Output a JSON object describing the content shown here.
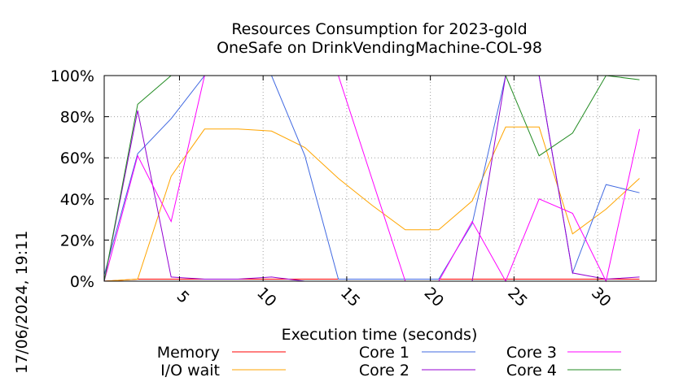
{
  "chart_data": {
    "type": "line",
    "title": [
      "Resources Consumption for 2023-gold",
      "OneSafe on DrinkVendingMachine-COL-98"
    ],
    "xlabel": "Execution time (seconds)",
    "ylabel": "",
    "xlim": [
      0.5,
      33.5
    ],
    "ylim": [
      0,
      100
    ],
    "x_ticks": [
      5,
      10,
      15,
      20,
      25,
      30
    ],
    "y_ticks": [
      {
        "value": 0,
        "label": "0%"
      },
      {
        "value": 20,
        "label": "20%"
      },
      {
        "value": 40,
        "label": "40%"
      },
      {
        "value": 60,
        "label": "60%"
      },
      {
        "value": 80,
        "label": "80%"
      },
      {
        "value": 100,
        "label": "100%"
      }
    ],
    "grid": true,
    "legend_position": "bottom",
    "timestamp": "17/06/2024, 19:11",
    "series": [
      {
        "name": "Memory",
        "color": "#ff0000",
        "points": [
          [
            0.5,
            0
          ],
          [
            2.5,
            1
          ],
          [
            4.5,
            1
          ],
          [
            6.5,
            1
          ],
          [
            8.5,
            1
          ],
          [
            10.5,
            1
          ],
          [
            12.5,
            1
          ],
          [
            14.5,
            1
          ],
          [
            16.5,
            1
          ],
          [
            18.5,
            1
          ],
          [
            20.5,
            1
          ],
          [
            22.5,
            1
          ],
          [
            24.5,
            1
          ],
          [
            26.5,
            1
          ],
          [
            28.5,
            1
          ],
          [
            30.5,
            1
          ],
          [
            32.5,
            1
          ]
        ]
      },
      {
        "name": "I/O wait",
        "color": "#ffa500",
        "points": [
          [
            0.5,
            0
          ],
          [
            2.5,
            1
          ],
          [
            4.5,
            51
          ],
          [
            6.5,
            74
          ],
          [
            8.5,
            74
          ],
          [
            10.5,
            73
          ],
          [
            12.5,
            65
          ],
          [
            14.5,
            50
          ],
          [
            16.5,
            37
          ],
          [
            18.5,
            25
          ],
          [
            20.5,
            25
          ],
          [
            22.5,
            39
          ],
          [
            24.5,
            75
          ],
          [
            26.5,
            75
          ],
          [
            28.5,
            23
          ],
          [
            30.5,
            35
          ],
          [
            32.5,
            50
          ]
        ]
      },
      {
        "name": "Core 1",
        "color": "#4169e1",
        "points": [
          [
            0.5,
            3
          ],
          [
            2.5,
            62
          ],
          [
            4.5,
            79
          ],
          [
            6.5,
            100
          ],
          [
            8.5,
            100
          ],
          [
            10.5,
            100
          ],
          [
            12.5,
            61
          ],
          [
            14.5,
            1
          ],
          [
            16.5,
            1
          ],
          [
            18.5,
            1
          ],
          [
            20.5,
            1
          ],
          [
            22.5,
            28
          ],
          [
            24.5,
            100
          ],
          [
            26.5,
            100
          ],
          [
            28.5,
            4
          ],
          [
            30.5,
            47
          ],
          [
            32.5,
            43
          ]
        ]
      },
      {
        "name": "Core 2",
        "color": "#9400d3",
        "points": [
          [
            0.5,
            0
          ],
          [
            2.5,
            83
          ],
          [
            4.5,
            2
          ],
          [
            6.5,
            1
          ],
          [
            8.5,
            1
          ],
          [
            10.5,
            2
          ],
          [
            12.5,
            0
          ],
          [
            14.5,
            0
          ],
          [
            16.5,
            0
          ],
          [
            18.5,
            0
          ],
          [
            20.5,
            0
          ],
          [
            22.5,
            0
          ],
          [
            24.5,
            100
          ],
          [
            26.5,
            100
          ],
          [
            28.5,
            4
          ],
          [
            30.5,
            1
          ],
          [
            32.5,
            2
          ]
        ]
      },
      {
        "name": "Core 3",
        "color": "#ff00ff",
        "points": [
          [
            0.5,
            0
          ],
          [
            2.5,
            61
          ],
          [
            4.5,
            29
          ],
          [
            6.5,
            100
          ],
          [
            8.5,
            100
          ],
          [
            10.5,
            100
          ],
          [
            12.5,
            100
          ],
          [
            14.5,
            100
          ],
          [
            16.5,
            50
          ],
          [
            18.5,
            0
          ],
          [
            20.5,
            0
          ],
          [
            22.5,
            29
          ],
          [
            24.5,
            0
          ],
          [
            26.5,
            40
          ],
          [
            28.5,
            33
          ],
          [
            30.5,
            0
          ],
          [
            32.5,
            74
          ]
        ]
      },
      {
        "name": "Core 4",
        "color": "#228b22",
        "points": [
          [
            0.5,
            0
          ],
          [
            2.5,
            86
          ],
          [
            4.5,
            100
          ],
          [
            6.5,
            100
          ],
          [
            8.5,
            100
          ],
          [
            10.5,
            100
          ],
          [
            12.5,
            100
          ],
          [
            14.5,
            100
          ],
          [
            16.5,
            100
          ],
          [
            18.5,
            100
          ],
          [
            20.5,
            100
          ],
          [
            22.5,
            100
          ],
          [
            24.5,
            100
          ],
          [
            26.5,
            61
          ],
          [
            28.5,
            72
          ],
          [
            30.5,
            100
          ],
          [
            32.5,
            98
          ]
        ]
      }
    ]
  }
}
